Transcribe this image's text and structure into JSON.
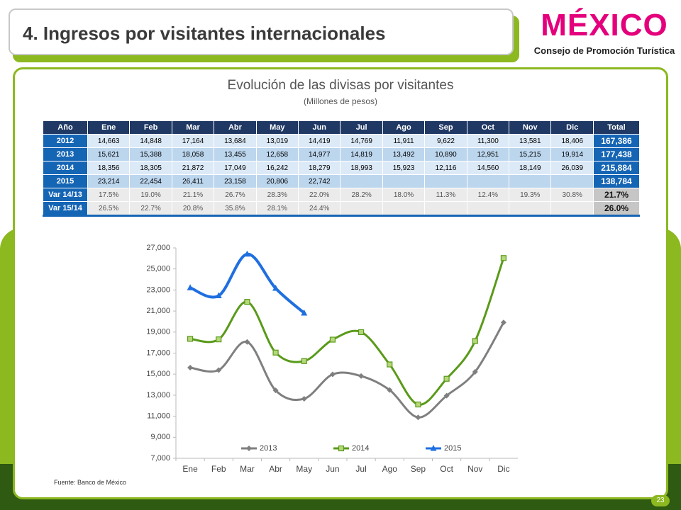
{
  "header": {
    "title": "4. Ingresos por visitantes internacionales"
  },
  "logo": {
    "word": "MÉXICO",
    "subtitle": "Consejo de Promoción Turística"
  },
  "table": {
    "title": "Evolución de las divisas por visitantes",
    "subtitle": "(Millones de pesos)",
    "columns": [
      "Año",
      "Ene",
      "Feb",
      "Mar",
      "Abr",
      "May",
      "Jun",
      "Jul",
      "Ago",
      "Sep",
      "Oct",
      "Nov",
      "Dic",
      "Total"
    ],
    "rows": [
      [
        "2012",
        "14,663",
        "14,848",
        "17,164",
        "13,684",
        "13,019",
        "14,419",
        "14,769",
        "11,911",
        "9,622",
        "11,300",
        "13,581",
        "18,406",
        "167,386"
      ],
      [
        "2013",
        "15,621",
        "15,388",
        "18,058",
        "13,455",
        "12,658",
        "14,977",
        "14,819",
        "13,492",
        "10,890",
        "12,951",
        "15,215",
        "19,914",
        "177,438"
      ],
      [
        "2014",
        "18,356",
        "18,305",
        "21,872",
        "17,049",
        "16,242",
        "18,279",
        "18,993",
        "15,923",
        "12,116",
        "14,560",
        "18,149",
        "26,039",
        "215,884"
      ],
      [
        "2015",
        "23,214",
        "22,454",
        "26,411",
        "23,158",
        "20,806",
        "22,742",
        null,
        null,
        null,
        null,
        null,
        null,
        "138,784"
      ],
      [
        "Var 14/13",
        "17.5%",
        "19.0%",
        "21.1%",
        "26.7%",
        "28.3%",
        "22.0%",
        "28.2%",
        "18.0%",
        "11.3%",
        "12.4%",
        "19.3%",
        "30.8%",
        "21.7%"
      ],
      [
        "Var 15/14",
        "26.5%",
        "22.7%",
        "20.8%",
        "35.8%",
        "28.1%",
        "24.4%",
        null,
        null,
        null,
        null,
        null,
        null,
        "26.0%"
      ]
    ]
  },
  "chart_data": {
    "type": "line",
    "categories": [
      "Ene",
      "Feb",
      "Mar",
      "Abr",
      "May",
      "Jun",
      "Jul",
      "Ago",
      "Sep",
      "Oct",
      "Nov",
      "Dic"
    ],
    "series": [
      {
        "name": "2013",
        "color": "#7f7f7f",
        "marker": "diamond",
        "values": [
          15621,
          15388,
          18058,
          13455,
          12658,
          14977,
          14819,
          13492,
          10890,
          12951,
          15215,
          19914
        ]
      },
      {
        "name": "2014",
        "color": "#5a9a1a",
        "marker": "square",
        "values": [
          18356,
          18305,
          21872,
          17049,
          16242,
          18279,
          18993,
          15923,
          12116,
          14560,
          18149,
          26039
        ]
      },
      {
        "name": "2015",
        "color": "#1f6fe0",
        "marker": "triangle",
        "values": [
          23214,
          22454,
          26411,
          23158,
          20806,
          null,
          null,
          null,
          null,
          null,
          null,
          null
        ]
      }
    ],
    "ylim": [
      7000,
      27000
    ],
    "yticks": [
      {
        "value": 7000,
        "label": "7,000"
      },
      {
        "value": 9000,
        "label": "9,000"
      },
      {
        "value": 11000,
        "label": "11,000"
      },
      {
        "value": 13000,
        "label": "13,000"
      },
      {
        "value": 15000,
        "label": "15,000"
      },
      {
        "value": 17000,
        "label": "17,000"
      },
      {
        "value": 19000,
        "label": "19,000"
      },
      {
        "value": 21000,
        "label": "21,000"
      },
      {
        "value": 23000,
        "label": "23,000"
      },
      {
        "value": 25000,
        "label": "25,000"
      },
      {
        "value": 27000,
        "label": "27,000"
      }
    ],
    "grid": false,
    "smooth": true,
    "legend": "bottom"
  },
  "source": "Fuente: Banco de México",
  "page_number": "23"
}
